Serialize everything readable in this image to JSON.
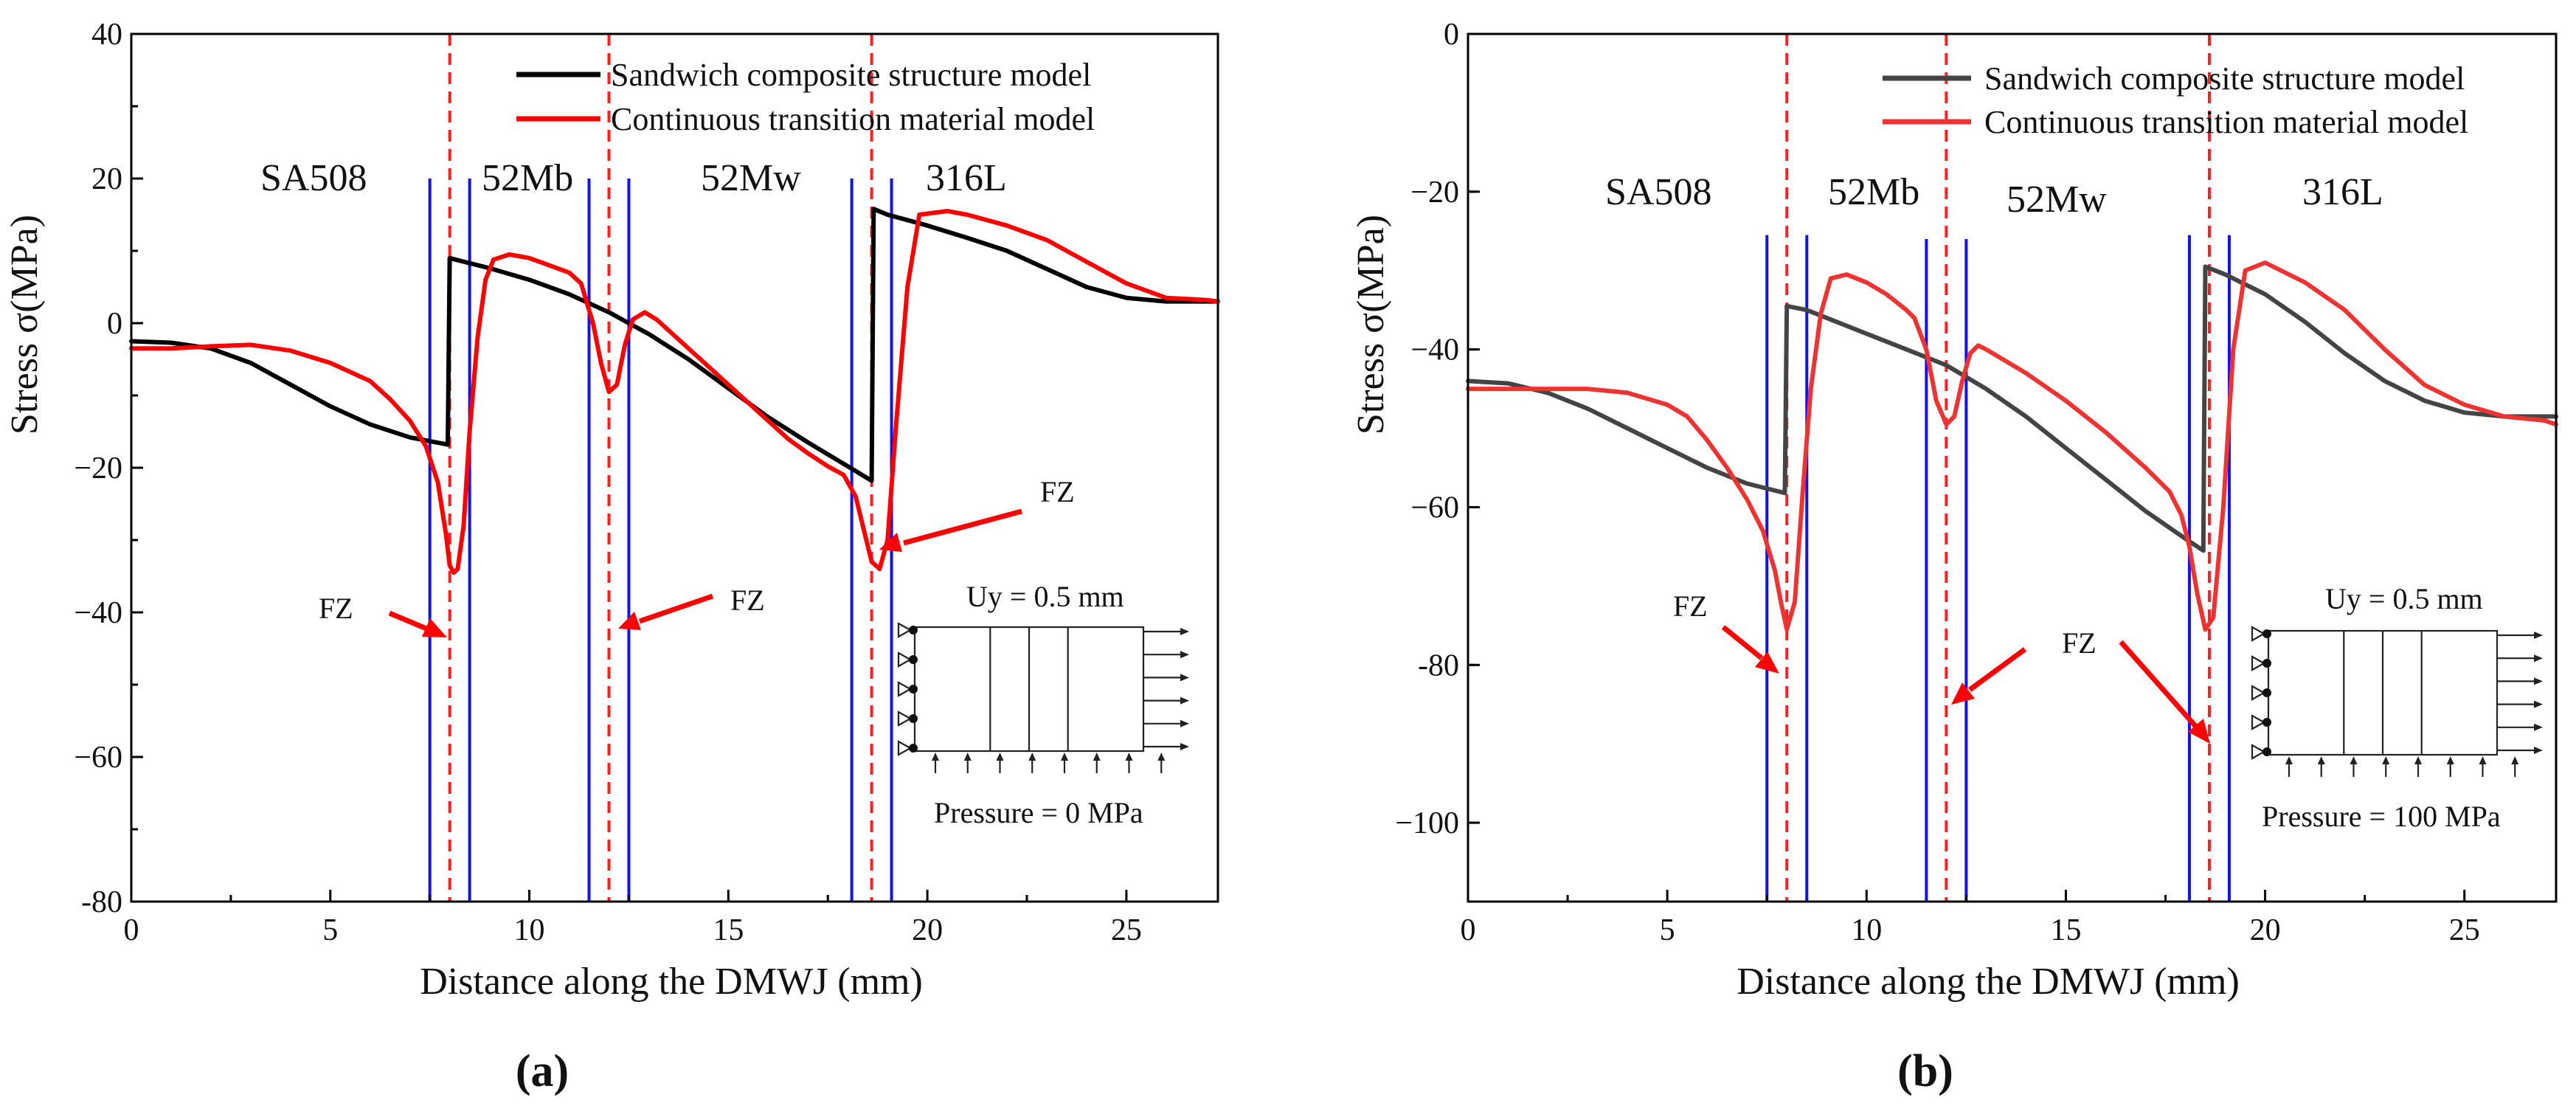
{
  "chart_data": [
    {
      "type": "line",
      "panel_label": "(a)",
      "xlabel": "Distance along the DMWJ (mm)",
      "ylabel": "Stress σ(MPa)",
      "xlim": [
        0,
        27.3
      ],
      "ylim": [
        -80,
        40
      ],
      "xticks": [
        0,
        5,
        10,
        15,
        20,
        25
      ],
      "yticks": [
        -80,
        -60,
        -40,
        -20,
        0,
        20,
        40
      ],
      "grid": false,
      "legend_position": "top-right",
      "series": [
        {
          "name": "Sandwich composite structure model",
          "color": "#000000",
          "x": [
            0,
            1,
            2,
            3,
            4,
            5,
            6,
            7,
            7.95,
            8.0,
            8.5,
            9,
            10,
            11,
            12,
            13,
            14,
            15,
            16,
            17,
            18,
            18.6,
            18.65,
            19,
            20,
            21,
            22,
            23,
            24,
            25,
            26,
            27,
            27.3
          ],
          "y": [
            -2.5,
            -2.7,
            -3.5,
            -5.5,
            -8.5,
            -11.5,
            -14,
            -15.8,
            -16.8,
            9,
            8.3,
            7.6,
            6,
            4,
            1.5,
            -1.5,
            -5,
            -9,
            -13,
            -16.5,
            -19.8,
            -21.8,
            15.8,
            15,
            13.5,
            11.8,
            10,
            7.5,
            5,
            3.5,
            3,
            3,
            3
          ]
        },
        {
          "name": "Continuous transition material model",
          "color": "#ff0000",
          "x": [
            0,
            1,
            2,
            3,
            4,
            5,
            6,
            6.5,
            7,
            7.4,
            7.7,
            7.9,
            8.0,
            8.1,
            8.2,
            8.35,
            8.5,
            8.7,
            8.9,
            9.1,
            9.5,
            10,
            10.5,
            11,
            11.3,
            11.6,
            11.8,
            12.0,
            12.2,
            12.4,
            12.6,
            12.9,
            13.2,
            13.6,
            14,
            14.5,
            15,
            15.5,
            16,
            16.5,
            17,
            17.5,
            17.9,
            18.2,
            18.4,
            18.6,
            18.8,
            19.0,
            19.2,
            19.5,
            19.8,
            20.5,
            21,
            22,
            23,
            24,
            25,
            26,
            27,
            27.3
          ],
          "y": [
            -3.5,
            -3.5,
            -3.2,
            -3,
            -3.8,
            -5.5,
            -8,
            -10.5,
            -13.5,
            -17,
            -22,
            -29,
            -33.5,
            -34.5,
            -34,
            -28,
            -15,
            -2,
            6,
            8.8,
            9.5,
            9,
            8,
            7,
            5.5,
            0,
            -5.5,
            -9.5,
            -8.5,
            -3,
            0.5,
            1.5,
            0.5,
            -1.5,
            -3.5,
            -6,
            -8.5,
            -11,
            -13.5,
            -16,
            -18,
            -19.8,
            -21,
            -24,
            -28.5,
            -33,
            -34,
            -30,
            -15,
            5,
            15,
            15.5,
            15,
            13.5,
            11.5,
            8.5,
            5.5,
            3.5,
            3.2,
            3
          ]
        }
      ],
      "zones": [
        "SA508",
        "52Mb",
        "52Mw",
        "316L"
      ],
      "blue_lines_x": [
        7.5,
        8.5,
        11.5,
        12.5,
        18.1,
        19.1
      ],
      "dashed_lines_x": [
        8.0,
        12.0,
        18.6
      ],
      "annotations": [
        "FZ",
        "FZ",
        "FZ"
      ],
      "inset": {
        "displacement": "Uy = 0.5 mm",
        "pressure": "Pressure =  0 MPa"
      }
    },
    {
      "type": "line",
      "panel_label": "(b)",
      "xlabel": "Distance along the DMWJ (mm)",
      "ylabel": "Stress σ(MPa)",
      "xlim": [
        0,
        27.3
      ],
      "ylim": [
        -110,
        0
      ],
      "xticks": [
        0,
        5,
        10,
        15,
        20,
        25
      ],
      "yticks": [
        -100,
        -80,
        -60,
        -40,
        -20,
        0
      ],
      "grid": false,
      "legend_position": "top-right",
      "series": [
        {
          "name": "Sandwich composite structure model",
          "color": "#444444",
          "x": [
            0,
            1,
            2,
            3,
            4,
            5,
            6,
            7,
            7.95,
            8.0,
            8.5,
            9,
            10,
            11,
            12,
            13,
            14,
            15,
            16,
            17,
            18,
            18.45,
            18.5,
            19,
            20,
            21,
            22,
            23,
            24,
            25,
            26,
            27,
            27.3
          ],
          "y": [
            -44,
            -44.3,
            -45.5,
            -47.5,
            -50,
            -52.5,
            -55,
            -57,
            -58.2,
            -34.5,
            -35,
            -36,
            -38,
            -40,
            -42,
            -45,
            -48.5,
            -52.5,
            -56.5,
            -60.5,
            -64,
            -65.5,
            -29.5,
            -30.5,
            -33,
            -36.5,
            -40.5,
            -44,
            -46.5,
            -48,
            -48.5,
            -48.5,
            -48.5
          ]
        },
        {
          "name": "Continuous transition material model",
          "color": "#ee3333",
          "x": [
            0,
            1,
            2,
            3,
            4,
            5,
            5.5,
            6,
            6.5,
            7,
            7.4,
            7.7,
            7.85,
            8.0,
            8.2,
            8.4,
            8.6,
            8.85,
            9.1,
            9.5,
            10,
            10.5,
            11,
            11.2,
            11.5,
            11.75,
            12.0,
            12.2,
            12.4,
            12.6,
            12.8,
            13,
            14,
            15,
            16,
            17,
            17.6,
            17.9,
            18.1,
            18.3,
            18.5,
            18.7,
            18.95,
            19.2,
            19.5,
            20,
            21,
            22,
            23,
            24,
            25,
            26,
            27,
            27.3
          ],
          "y": [
            -45,
            -45,
            -45,
            -45,
            -45.5,
            -47,
            -48.5,
            -51.5,
            -55,
            -59,
            -63,
            -68,
            -72,
            -75.5,
            -72,
            -58,
            -45,
            -35.5,
            -31,
            -30.5,
            -31.5,
            -33,
            -35,
            -36,
            -40,
            -46.5,
            -49.5,
            -48.5,
            -44,
            -40.5,
            -39.5,
            -40,
            -43,
            -46.5,
            -50.5,
            -55,
            -58,
            -61,
            -65,
            -71,
            -75.5,
            -74,
            -60,
            -40,
            -30,
            -29,
            -31.5,
            -35,
            -40,
            -44.5,
            -47,
            -48.5,
            -49,
            -49.5
          ]
        }
      ],
      "zones": [
        "SA508",
        "52Mb",
        "52Mw",
        "316L"
      ],
      "blue_lines_x": [
        7.5,
        8.5,
        11.5,
        12.5,
        18.1,
        19.1
      ],
      "dashed_lines_x": [
        8.0,
        12.0,
        18.6
      ],
      "annotations": [
        "FZ",
        "FZ"
      ],
      "inset": {
        "displacement": "Uy = 0.5 mm",
        "pressure": "Pressure = 100 MPa"
      }
    }
  ]
}
